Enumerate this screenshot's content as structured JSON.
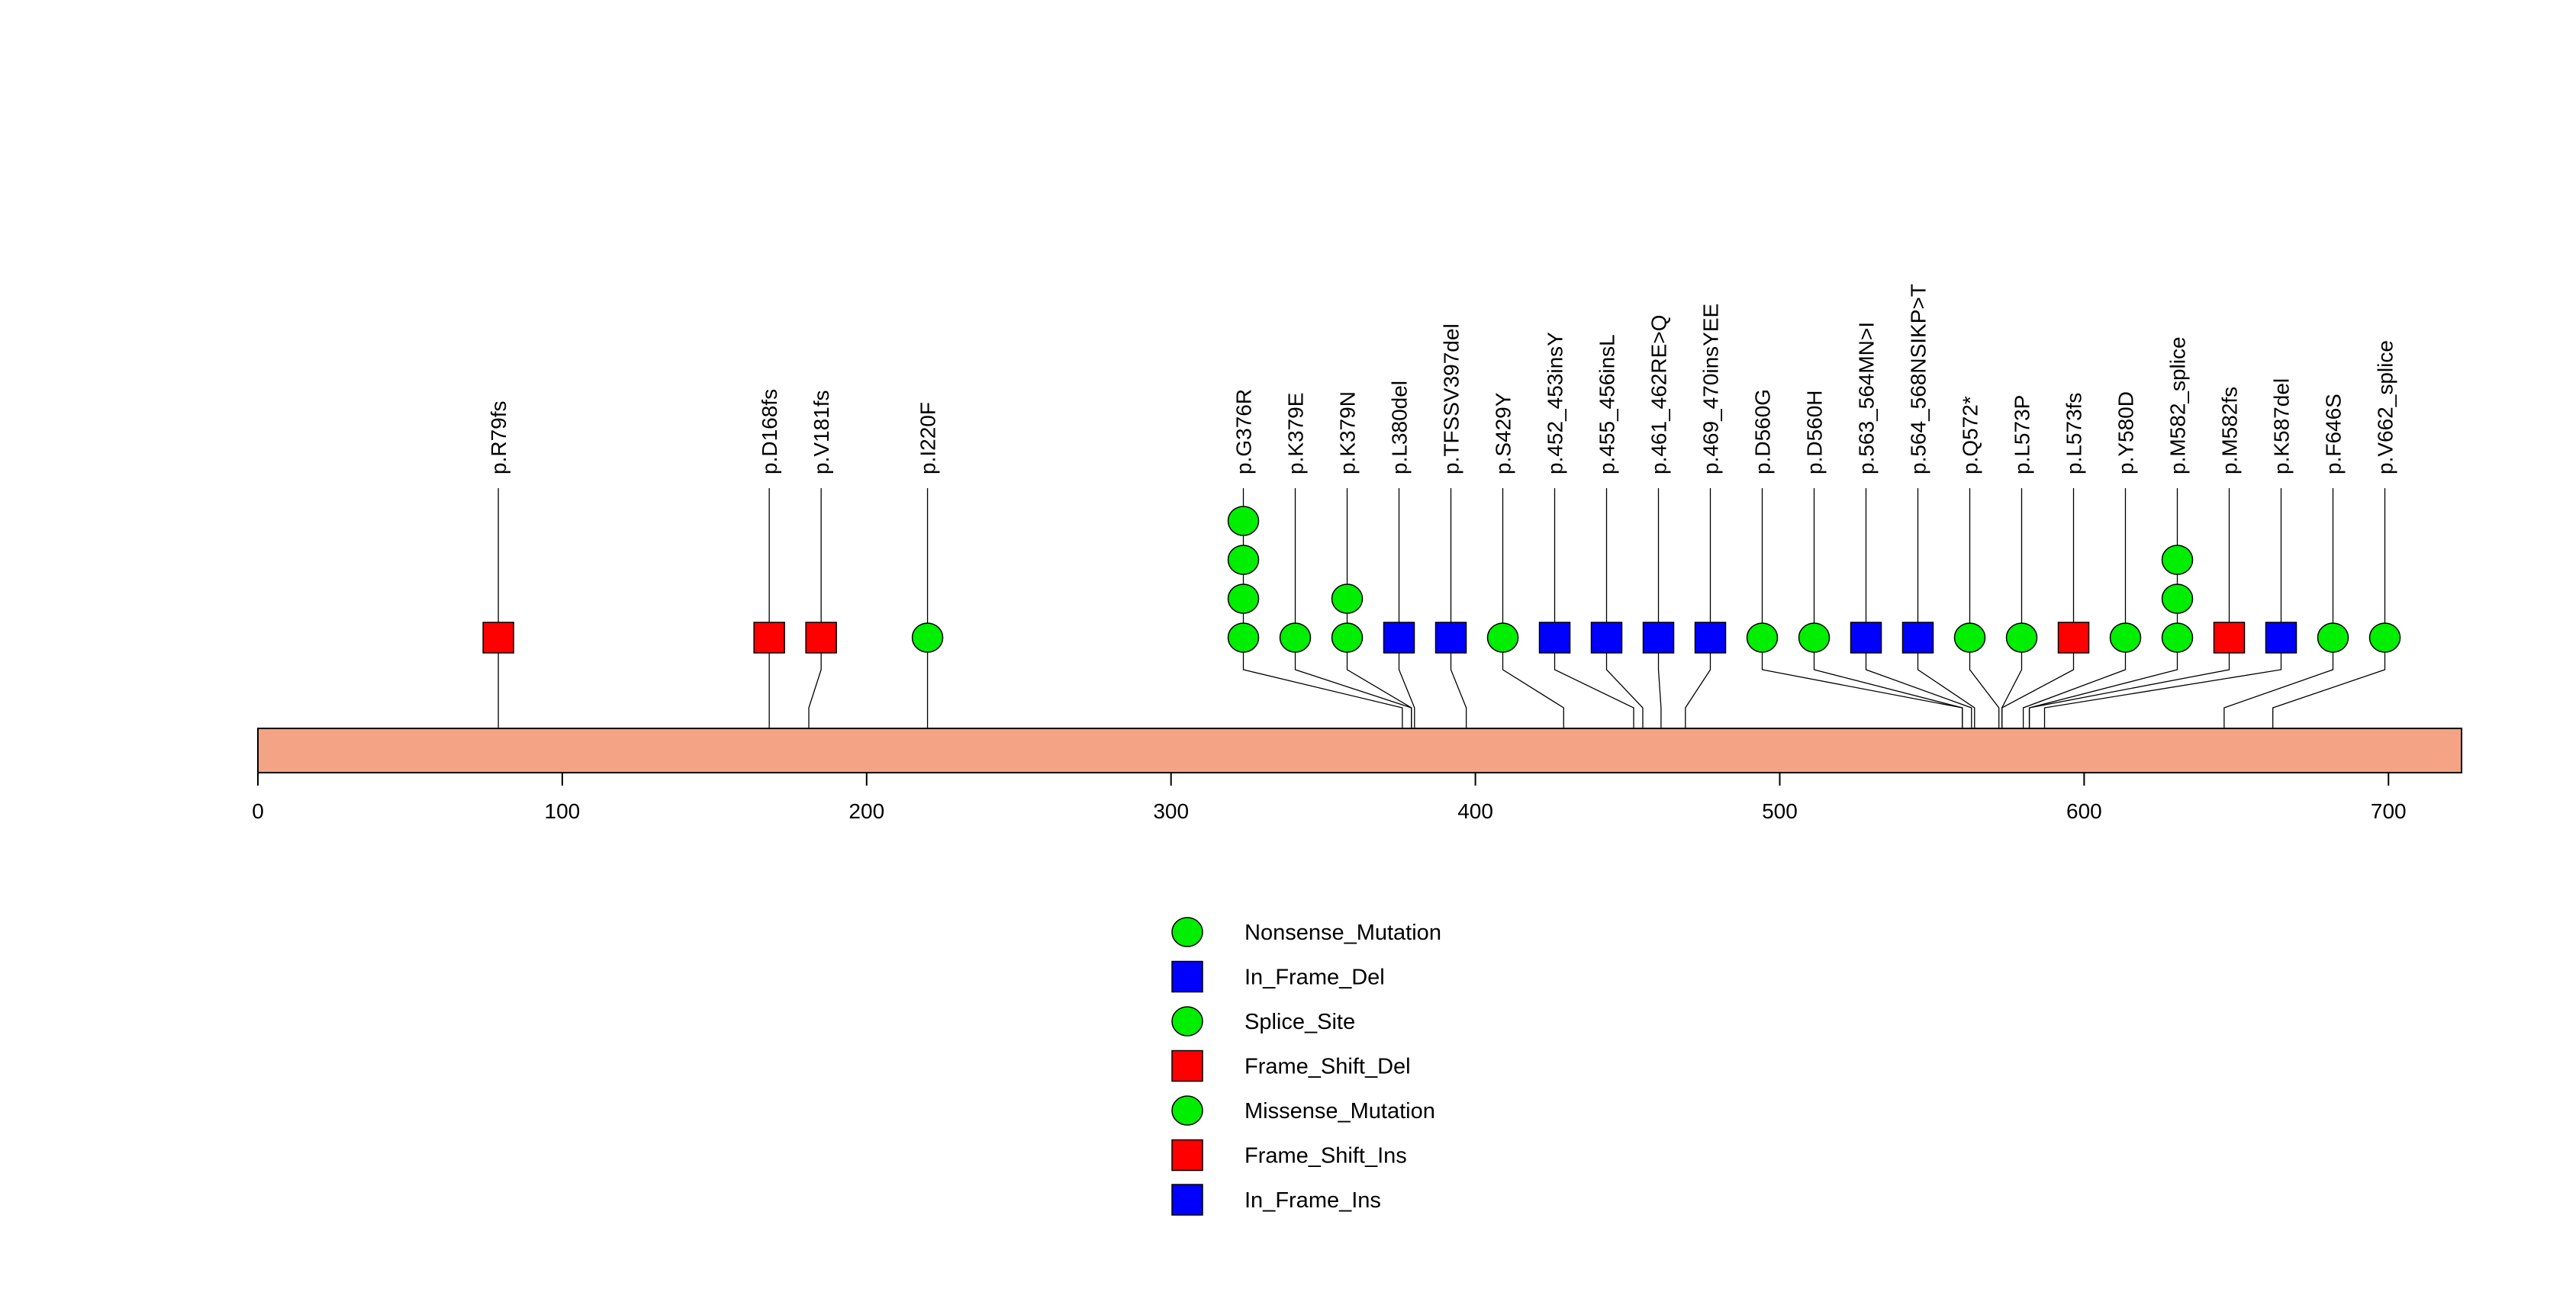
{
  "chart_data": {
    "type": "lollipop",
    "protein_length": 724,
    "xlim": [
      0,
      724
    ],
    "x_ticks": [
      0,
      100,
      200,
      300,
      400,
      500,
      600,
      700
    ],
    "colors": {
      "green": "#00ee00",
      "blue": "#0000ff",
      "red": "#ff0000",
      "domain_bar": "#f4a484",
      "stroke": "#000000"
    },
    "mutations": [
      {
        "label": "p.R79fs",
        "position": 79,
        "markers": [
          "red-square"
        ]
      },
      {
        "label": "p.D168fs",
        "position": 168,
        "markers": [
          "red-square"
        ]
      },
      {
        "label": "p.V181fs",
        "position": 181,
        "markers": [
          "red-square"
        ]
      },
      {
        "label": "p.I220F",
        "position": 220,
        "markers": [
          "green-circle"
        ]
      },
      {
        "label": "p.G376R",
        "position": 376,
        "markers": [
          "green-circle",
          "green-circle",
          "green-circle",
          "green-circle"
        ]
      },
      {
        "label": "p.K379E",
        "position": 379,
        "markers": [
          "green-circle"
        ]
      },
      {
        "label": "p.K379N",
        "position": 379,
        "markers": [
          "green-circle",
          "green-circle"
        ]
      },
      {
        "label": "p.L380del",
        "position": 380,
        "markers": [
          "blue-square"
        ]
      },
      {
        "label": "p.TFSSV397del",
        "position": 397,
        "markers": [
          "blue-square"
        ]
      },
      {
        "label": "p.S429Y",
        "position": 429,
        "markers": [
          "green-circle"
        ]
      },
      {
        "label": "p.452_453insY",
        "position": 452,
        "markers": [
          "blue-square"
        ]
      },
      {
        "label": "p.455_456insL",
        "position": 455,
        "markers": [
          "blue-square"
        ]
      },
      {
        "label": "p.461_462RE>Q",
        "position": 461,
        "markers": [
          "blue-square"
        ]
      },
      {
        "label": "p.469_470insYEE",
        "position": 469,
        "markers": [
          "blue-square"
        ]
      },
      {
        "label": "p.D560G",
        "position": 560,
        "markers": [
          "green-circle"
        ]
      },
      {
        "label": "p.D560H",
        "position": 560,
        "markers": [
          "green-circle"
        ]
      },
      {
        "label": "p.563_564MN>I",
        "position": 563,
        "markers": [
          "blue-square"
        ]
      },
      {
        "label": "p.564_568NSIKP>T",
        "position": 564,
        "markers": [
          "blue-square"
        ]
      },
      {
        "label": "p.Q572*",
        "position": 572,
        "markers": [
          "green-circle"
        ]
      },
      {
        "label": "p.L573P",
        "position": 573,
        "markers": [
          "green-circle"
        ]
      },
      {
        "label": "p.L573fs",
        "position": 573,
        "markers": [
          "red-square"
        ]
      },
      {
        "label": "p.Y580D",
        "position": 580,
        "markers": [
          "green-circle"
        ]
      },
      {
        "label": "p.M582_splice",
        "position": 582,
        "markers": [
          "green-circle",
          "green-circle",
          "green-circle"
        ]
      },
      {
        "label": "p.M582fs",
        "position": 582,
        "markers": [
          "red-square"
        ]
      },
      {
        "label": "p.K587del",
        "position": 587,
        "markers": [
          "blue-square"
        ]
      },
      {
        "label": "p.F646S",
        "position": 646,
        "markers": [
          "green-circle"
        ]
      },
      {
        "label": "p.V662_splice",
        "position": 662,
        "markers": [
          "green-circle"
        ]
      }
    ],
    "legend": [
      {
        "label": "Nonsense_Mutation",
        "marker": "green-circle"
      },
      {
        "label": "In_Frame_Del",
        "marker": "blue-square"
      },
      {
        "label": "Splice_Site",
        "marker": "green-circle"
      },
      {
        "label": "Frame_Shift_Del",
        "marker": "red-square"
      },
      {
        "label": "Missense_Mutation",
        "marker": "green-circle"
      },
      {
        "label": "Frame_Shift_Ins",
        "marker": "red-square"
      },
      {
        "label": "In_Frame_Ins",
        "marker": "blue-square"
      }
    ]
  }
}
